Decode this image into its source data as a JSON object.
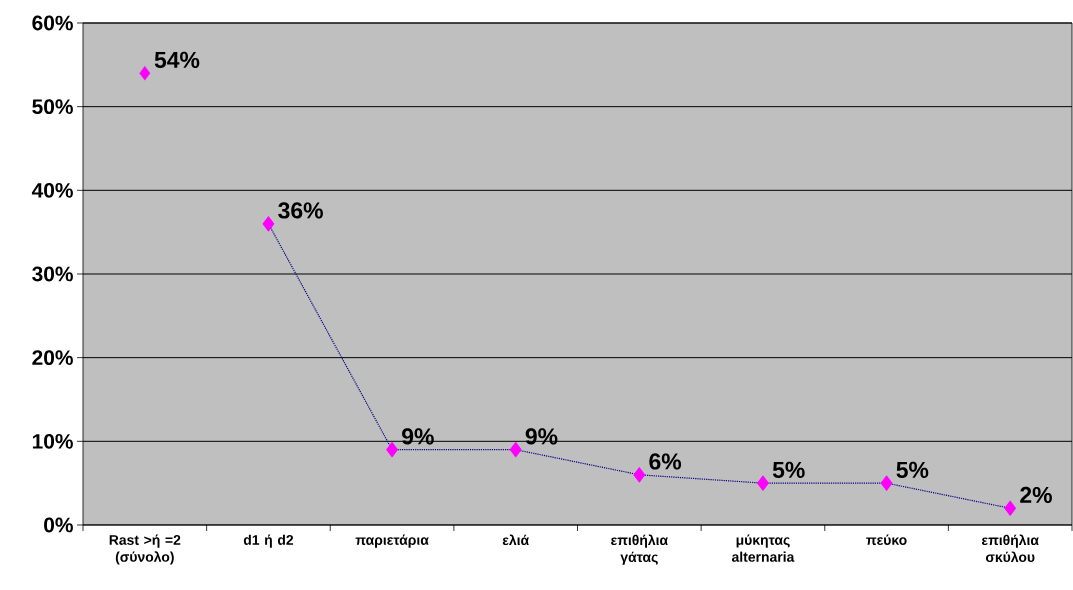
{
  "chart_data": {
    "type": "line",
    "categories": [
      "Rast >ή =2 (σύνολο)",
      "d1 ή d2",
      "παριετάρια",
      "ελιά",
      "επιθήλια γάτας",
      "μύκητας alternaria",
      "πεύκο",
      "επιθήλια σκύλου"
    ],
    "series": [
      {
        "type": "scatter",
        "color": "#ff00ff",
        "marker": "diamond",
        "values": [
          54,
          null,
          null,
          null,
          null,
          null,
          null,
          null
        ],
        "value_labels": [
          "54%",
          null,
          null,
          null,
          null,
          null,
          null,
          null
        ]
      },
      {
        "color": "#000080",
        "colors": [
          null,
          "#ff00ff",
          "#ff00ff",
          "#ff00ff",
          "#ff00ff",
          "#ff00ff",
          "#ff00ff",
          "#ff00ff"
        ],
        "marker": "diamond",
        "line_style": "dotted",
        "values": [
          null,
          36,
          9,
          9,
          6,
          5,
          5,
          2
        ],
        "value_labels": [
          null,
          "36%",
          "9%",
          "9%",
          "6%",
          "5%",
          "5%",
          "2%"
        ]
      }
    ],
    "ylim": [
      0,
      60
    ],
    "yticks": [
      {
        "value": 0,
        "label": "0%"
      },
      {
        "value": 10,
        "label": "10%"
      },
      {
        "value": 20,
        "label": "20%"
      },
      {
        "value": 30,
        "label": "30%"
      },
      {
        "value": 40,
        "label": "40%"
      },
      {
        "value": 50,
        "label": "50%"
      },
      {
        "value": 60,
        "label": "60%"
      }
    ],
    "grid": "y"
  }
}
